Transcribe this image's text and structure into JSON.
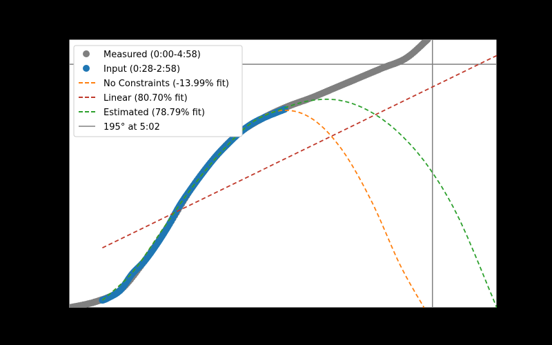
{
  "chart_data": {
    "type": "scatter",
    "grid": false,
    "legend_position": "top-left",
    "xlim": [
      -3,
      356
    ],
    "ylim": [
      0,
      215
    ],
    "series": [
      {
        "name": "Measured (0:00-4:58)",
        "kind": "scatter",
        "color": "#7f7f7f",
        "x": [
          -3,
          20,
          40,
          60,
          80,
          100,
          120,
          140,
          160,
          180,
          200,
          220,
          240,
          260,
          280,
          298
        ],
        "y": [
          0,
          5,
          14,
          37,
          65,
          96,
          121,
          140,
          152,
          161,
          168,
          176,
          184,
          192,
          200,
          215
        ]
      },
      {
        "name": "Input (0:28-2:58)",
        "kind": "scatter",
        "color": "#1f77b4",
        "x": [
          25,
          30,
          40,
          50,
          60,
          70,
          80,
          90,
          100,
          110,
          120,
          130,
          140,
          150,
          160,
          170,
          178
        ],
        "y": [
          6,
          8,
          14,
          27,
          37,
          50,
          65,
          82,
          96,
          109,
          121,
          131,
          140,
          147,
          152,
          156,
          159
        ]
      },
      {
        "name": "No Constraints (-13.99% fit)",
        "kind": "line",
        "color": "#ff7f0e",
        "x": [
          25,
          50,
          75,
          100,
          125,
          150,
          175,
          200,
          225,
          250,
          275,
          295
        ],
        "y": [
          6,
          28,
          62,
          96,
          125,
          148,
          158,
          152,
          128,
          87,
          34,
          0
        ]
      },
      {
        "name": "Linear (80.70% fit)",
        "kind": "line",
        "color": "#c0392b",
        "x": [
          25,
          356
        ],
        "y": [
          48,
          202
        ]
      },
      {
        "name": "Estimated (78.79% fit)",
        "kind": "line",
        "color": "#2ca02c",
        "x": [
          25,
          50,
          75,
          100,
          125,
          150,
          175,
          200,
          225,
          250,
          275,
          300,
          325,
          356
        ],
        "y": [
          6,
          28,
          62,
          96,
          125,
          148,
          159,
          166,
          166,
          157,
          139,
          111,
          70,
          0
        ]
      }
    ],
    "reference": {
      "name": "195° at 5:02",
      "x": 302,
      "y": 195,
      "color": "#808080"
    }
  }
}
